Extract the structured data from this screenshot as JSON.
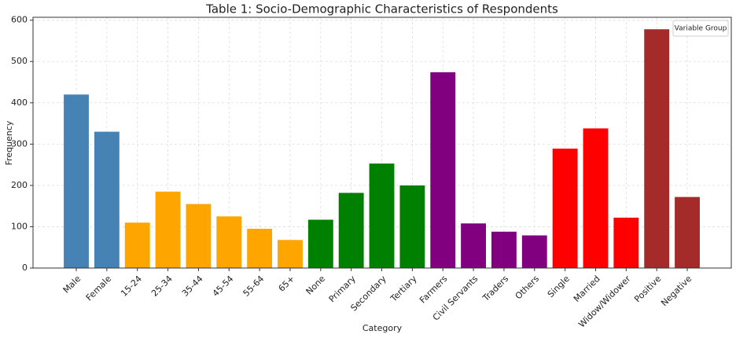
{
  "chart_data": {
    "type": "bar",
    "title": "Table 1: Socio-Demographic Characteristics of Respondents",
    "x_label": "Category",
    "y_label": "Frequency",
    "categories": [
      "Male",
      "Female",
      "15-24",
      "25-34",
      "35-44",
      "45-54",
      "55-64",
      "65+",
      "None",
      "Primary",
      "Secondary",
      "Tertiary",
      "Farmers",
      "Civil Servants",
      "Traders",
      "Others",
      "Single",
      "Married",
      "Widow/Widower",
      "Positive",
      "Negative"
    ],
    "values": [
      420,
      330,
      110,
      185,
      155,
      125,
      95,
      68,
      117,
      182,
      253,
      200,
      474,
      108,
      88,
      79,
      289,
      338,
      122,
      578,
      172
    ],
    "colors": [
      "#4682b4",
      "#4682b4",
      "#ffa500",
      "#ffa500",
      "#ffa500",
      "#ffa500",
      "#ffa500",
      "#ffa500",
      "#008000",
      "#008000",
      "#008000",
      "#008000",
      "#800080",
      "#800080",
      "#800080",
      "#800080",
      "#ff0000",
      "#ff0000",
      "#ff0000",
      "#a52a2a",
      "#a52a2a"
    ],
    "ylim": [
      0,
      607
    ],
    "yticks": [
      0,
      100,
      200,
      300,
      400,
      500,
      600
    ],
    "grid": true,
    "legend_title": "Variable Group",
    "legend": "upper right"
  }
}
